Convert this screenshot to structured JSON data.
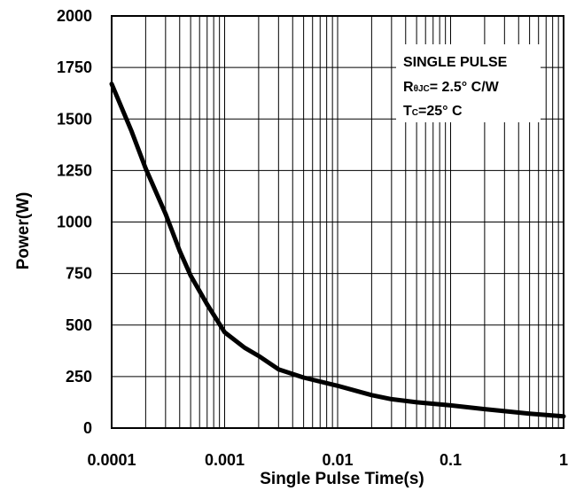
{
  "chart_data": {
    "type": "line",
    "title": "",
    "xlabel": "Single Pulse Time(s)",
    "ylabel": "Power(W)",
    "x_scale": "log",
    "xlim": [
      0.0001,
      1
    ],
    "ylim": [
      0,
      2000
    ],
    "x_ticks": [
      {
        "value": 0.0001,
        "label": "0.0001"
      },
      {
        "value": 0.001,
        "label": "0.001"
      },
      {
        "value": 0.01,
        "label": "0.01"
      },
      {
        "value": 0.1,
        "label": "0.1"
      },
      {
        "value": 1,
        "label": "1"
      }
    ],
    "y_ticks": [
      {
        "value": 0,
        "label": "0"
      },
      {
        "value": 250,
        "label": "250"
      },
      {
        "value": 500,
        "label": "500"
      },
      {
        "value": 750,
        "label": "750"
      },
      {
        "value": 1000,
        "label": "1000"
      },
      {
        "value": 1250,
        "label": "1250"
      },
      {
        "value": 1500,
        "label": "1500"
      },
      {
        "value": 1750,
        "label": "1750"
      },
      {
        "value": 2000,
        "label": "2000"
      }
    ],
    "grid": true,
    "legend": "none",
    "series": [
      {
        "color": "#000000",
        "points": [
          {
            "x": 0.0001,
            "y": 1670
          },
          {
            "x": 0.00015,
            "y": 1440
          },
          {
            "x": 0.0002,
            "y": 1260
          },
          {
            "x": 0.0003,
            "y": 1040
          },
          {
            "x": 0.0004,
            "y": 860
          },
          {
            "x": 0.0005,
            "y": 740
          },
          {
            "x": 0.0007,
            "y": 600
          },
          {
            "x": 0.001,
            "y": 465
          },
          {
            "x": 0.0015,
            "y": 390
          },
          {
            "x": 0.002,
            "y": 350
          },
          {
            "x": 0.003,
            "y": 285
          },
          {
            "x": 0.005,
            "y": 245
          },
          {
            "x": 0.01,
            "y": 205
          },
          {
            "x": 0.02,
            "y": 160
          },
          {
            "x": 0.03,
            "y": 140
          },
          {
            "x": 0.05,
            "y": 125
          },
          {
            "x": 0.1,
            "y": 110
          },
          {
            "x": 0.2,
            "y": 92
          },
          {
            "x": 0.3,
            "y": 82
          },
          {
            "x": 0.5,
            "y": 70
          },
          {
            "x": 1,
            "y": 57
          }
        ]
      }
    ],
    "annotation": {
      "line1": "SINGLE PULSE",
      "line2_main": "R",
      "line2_sub": "θJC",
      "line2_rest": "= 2.5° C/W",
      "line3_main": "T",
      "line3_sub": "C",
      "line3_rest": "=25° C"
    }
  }
}
